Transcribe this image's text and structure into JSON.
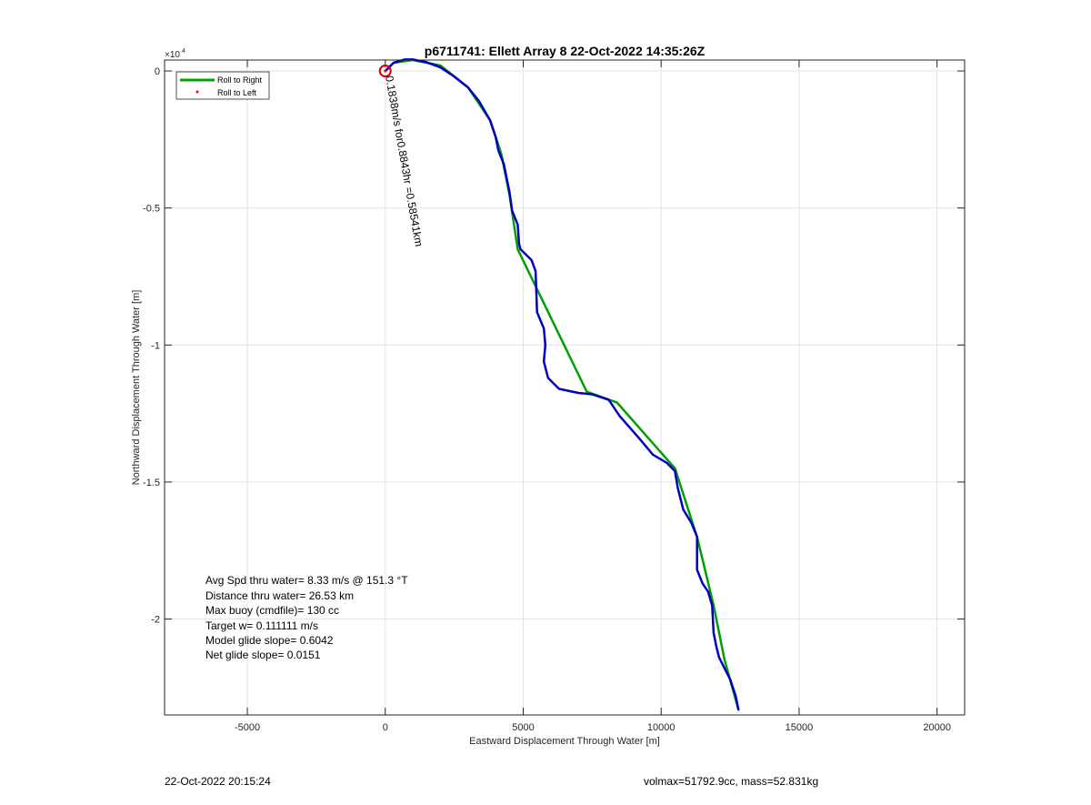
{
  "chart_data": {
    "type": "line",
    "title": "p6711741: Ellett Array 8 22-Oct-2022 14:35:26Z",
    "xlabel": "Eastward Displacement Through Water [m]",
    "ylabel": "Northward Displacement Through Water [m]",
    "xlim": [
      -8000,
      21000
    ],
    "ylim": [
      -23500,
      400
    ],
    "y_multiplier_label": "×10^4",
    "x_ticks": [
      -5000,
      0,
      5000,
      10000,
      15000,
      20000
    ],
    "x_tick_labels": [
      "-5000",
      "0",
      "5000",
      "10000",
      "15000",
      "20000"
    ],
    "y_ticks": [
      0,
      -5000,
      -10000,
      -15000,
      -20000
    ],
    "y_tick_labels": [
      "0",
      "-0.5",
      "-1",
      "-1.5",
      "-2"
    ],
    "grid": true,
    "legend": {
      "placement": "top-left",
      "entries": [
        {
          "label": "Roll to Right",
          "color": "#00a000",
          "style": "line"
        },
        {
          "label": "Roll to Left",
          "color": "#ff0000",
          "style": "dot"
        }
      ]
    },
    "series": [
      {
        "name": "Roll to Right",
        "color": "#00a000",
        "x": [
          0,
          300,
          1000,
          2000,
          3000,
          3800,
          4200,
          4500,
          4800,
          7300,
          8400,
          10500,
          11300,
          11900,
          12300,
          12800
        ],
        "y": [
          0,
          300,
          400,
          200,
          -600,
          -1800,
          -3000,
          -4500,
          -6500,
          -11700,
          -12100,
          -14500,
          -17000,
          -19500,
          -21500,
          -23300
        ]
      },
      {
        "name": "Roll to Left",
        "color": "#ff0000",
        "x": [
          0
        ],
        "y": [
          0
        ]
      },
      {
        "name": "",
        "color": "#0000c0",
        "x": [
          0,
          300,
          700,
          1000,
          1500,
          2000,
          2500,
          3000,
          3400,
          3800,
          4000,
          4100,
          4300,
          4500,
          4600,
          4800,
          4850,
          4900,
          5300,
          5450,
          5500,
          5750,
          5800,
          5750,
          5900,
          6300,
          7000,
          7500,
          8100,
          8500,
          9200,
          9700,
          10200,
          10500,
          10600,
          10800,
          11100,
          11300,
          11300,
          11500,
          11700,
          11850,
          11900,
          12000,
          12100,
          12300,
          12500,
          12700,
          12800
        ],
        "y": [
          0,
          300,
          420,
          420,
          320,
          130,
          -200,
          -600,
          -1100,
          -1800,
          -2400,
          -2900,
          -3400,
          -4400,
          -5100,
          -5600,
          -6300,
          -6500,
          -6900,
          -7300,
          -8800,
          -9400,
          -10000,
          -10600,
          -11200,
          -11600,
          -11750,
          -11800,
          -12000,
          -12600,
          -13400,
          -14000,
          -14300,
          -14600,
          -15200,
          -16000,
          -16500,
          -17000,
          -18200,
          -18700,
          -19000,
          -19500,
          -20500,
          -21000,
          -21400,
          -21800,
          -22200,
          -22800,
          -23300
        ]
      }
    ],
    "annotations": [
      {
        "text": "Avg Spd thru water=  8.33 m/s @ 151.3 °T"
      },
      {
        "text": "Distance thru water= 26.53 km"
      },
      {
        "text": "Max buoy (cmdfile)= 130 cc"
      },
      {
        "text": "Target w= 0.111111 m/s"
      },
      {
        "text": "Model glide slope= 0.6042"
      },
      {
        "text": "Net glide slope= 0.0151"
      }
    ],
    "rotated_label": "0.1838m/s for0.8843hr =0.58541km",
    "start_marker": {
      "x": 0,
      "y": 0,
      "color": "#cc0000"
    }
  },
  "footer": {
    "left": "22-Oct-2022 20:15:24",
    "right": "volmax=51792.9cc, mass=52.831kg"
  }
}
